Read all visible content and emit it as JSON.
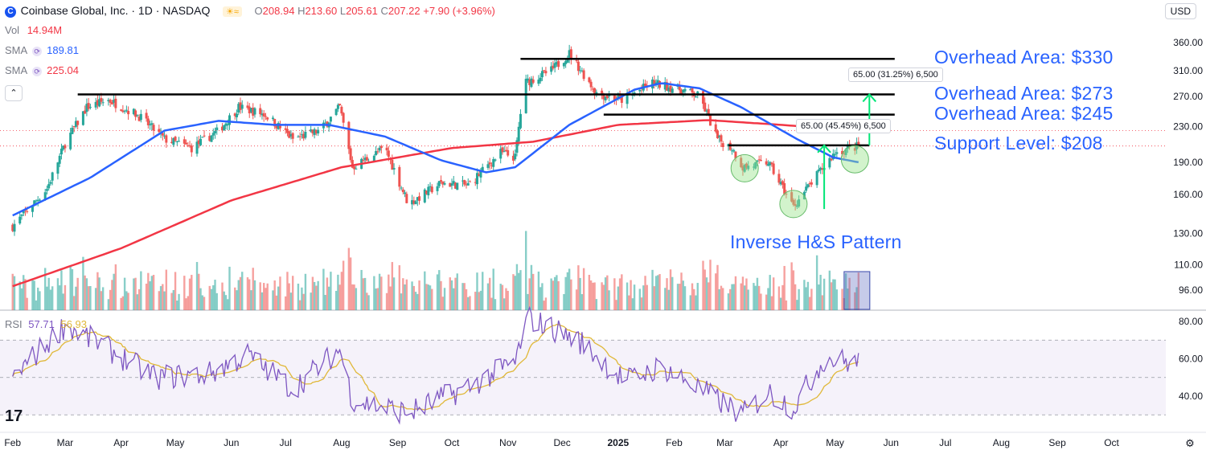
{
  "header": {
    "symbol_title": "Coinbase Global, Inc. · 1D · NASDAQ",
    "open_label": "O",
    "open": "208.94",
    "high_label": "H",
    "high": "213.60",
    "low_label": "L",
    "low": "205.61",
    "close_label": "C",
    "close": "207.22",
    "change": "+7.90 (+3.96%)",
    "currency": "USD"
  },
  "indicators": {
    "vol_label": "Vol",
    "vol_value": "14.94M",
    "sma1_label": "SMA",
    "sma1_value": "189.81",
    "sma2_label": "SMA",
    "sma2_value": "225.04",
    "rsi_label": "RSI",
    "rsi_value": "57.71",
    "rsi_ma_value": "56.93"
  },
  "annotations": {
    "overhead_330": "Overhead Area: $330",
    "overhead_273": "Overhead Area: $273",
    "overhead_245": "Overhead Area: $245",
    "support_208": "Support Level: $208",
    "pattern": "Inverse H&S Pattern",
    "measure_1": "65.00 (31.25%) 6,500",
    "measure_2": "65.00 (45.45%) 6,500"
  },
  "colors": {
    "up": "#26a69a",
    "down": "#ef5350",
    "sma50": "#2962ff",
    "sma200": "#f23645",
    "rsi": "#7e57c2",
    "rsi_ma": "#e0b838",
    "annotation": "#2962ff",
    "arrow": "#00e676"
  },
  "chart_data": {
    "type": "candlestick",
    "x_labels": [
      "Feb",
      "Mar",
      "Apr",
      "May",
      "Jun",
      "Jul",
      "Aug",
      "Sep",
      "Oct",
      "Nov",
      "Dec",
      "2025",
      "Feb",
      "Mar",
      "Apr",
      "May",
      "Jun",
      "Jul",
      "Aug",
      "Sep",
      "Oct"
    ],
    "y_ticks": [
      "360.00",
      "310.00",
      "270.00",
      "230.00",
      "190.00",
      "160.00",
      "130.00",
      "110.00",
      "96.00"
    ],
    "rsi_ticks": [
      "80.00",
      "60.00",
      "40.00"
    ],
    "horizontal_levels": [
      {
        "name": "overhead_330",
        "value": 330
      },
      {
        "name": "overhead_273",
        "value": 273
      },
      {
        "name": "overhead_245",
        "value": 245
      },
      {
        "name": "support_208",
        "value": 208
      }
    ],
    "price_anchors": [
      {
        "date": "2024-02-01",
        "close": 135
      },
      {
        "date": "2024-02-20",
        "close": 165
      },
      {
        "date": "2024-03-01",
        "close": 210
      },
      {
        "date": "2024-03-13",
        "close": 255
      },
      {
        "date": "2024-03-25",
        "close": 265
      },
      {
        "date": "2024-04-10",
        "close": 245
      },
      {
        "date": "2024-04-25",
        "close": 215
      },
      {
        "date": "2024-05-10",
        "close": 205
      },
      {
        "date": "2024-05-25",
        "close": 225
      },
      {
        "date": "2024-06-05",
        "close": 255
      },
      {
        "date": "2024-06-20",
        "close": 245
      },
      {
        "date": "2024-07-05",
        "close": 215
      },
      {
        "date": "2024-07-20",
        "close": 225
      },
      {
        "date": "2024-07-31",
        "close": 255
      },
      {
        "date": "2024-08-07",
        "close": 185
      },
      {
        "date": "2024-08-25",
        "close": 205
      },
      {
        "date": "2024-09-07",
        "close": 152
      },
      {
        "date": "2024-09-25",
        "close": 170
      },
      {
        "date": "2024-10-10",
        "close": 168
      },
      {
        "date": "2024-10-28",
        "close": 200
      },
      {
        "date": "2024-11-05",
        "close": 195
      },
      {
        "date": "2024-11-10",
        "close": 290
      },
      {
        "date": "2024-11-25",
        "close": 310
      },
      {
        "date": "2024-12-05",
        "close": 340
      },
      {
        "date": "2024-12-20",
        "close": 275
      },
      {
        "date": "2025-01-03",
        "close": 265
      },
      {
        "date": "2025-01-20",
        "close": 290
      },
      {
        "date": "2025-02-05",
        "close": 280
      },
      {
        "date": "2025-02-15",
        "close": 270
      },
      {
        "date": "2025-02-25",
        "close": 215
      },
      {
        "date": "2025-03-05",
        "close": 205
      },
      {
        "date": "2025-03-11",
        "close": 185
      },
      {
        "date": "2025-03-25",
        "close": 190
      },
      {
        "date": "2025-04-08",
        "close": 150
      },
      {
        "date": "2025-04-20",
        "close": 175
      },
      {
        "date": "2025-05-01",
        "close": 200
      },
      {
        "date": "2025-05-14",
        "close": 207
      }
    ],
    "sma50_anchors": [
      {
        "date": "2024-02-01",
        "value": 143
      },
      {
        "date": "2024-03-15",
        "value": 175
      },
      {
        "date": "2024-04-25",
        "value": 225
      },
      {
        "date": "2024-05-25",
        "value": 237
      },
      {
        "date": "2024-06-25",
        "value": 232
      },
      {
        "date": "2024-07-25",
        "value": 232
      },
      {
        "date": "2024-08-25",
        "value": 218
      },
      {
        "date": "2024-09-25",
        "value": 192
      },
      {
        "date": "2024-10-20",
        "value": 180
      },
      {
        "date": "2024-11-05",
        "value": 185
      },
      {
        "date": "2024-12-05",
        "value": 232
      },
      {
        "date": "2025-01-10",
        "value": 280
      },
      {
        "date": "2025-01-25",
        "value": 290
      },
      {
        "date": "2025-02-15",
        "value": 282
      },
      {
        "date": "2025-03-10",
        "value": 255
      },
      {
        "date": "2025-04-10",
        "value": 215
      },
      {
        "date": "2025-04-30",
        "value": 195
      },
      {
        "date": "2025-05-14",
        "value": 190
      }
    ],
    "sma200_anchors": [
      {
        "date": "2024-02-01",
        "value": 98
      },
      {
        "date": "2024-04-01",
        "value": 120
      },
      {
        "date": "2024-06-01",
        "value": 155
      },
      {
        "date": "2024-08-01",
        "value": 185
      },
      {
        "date": "2024-10-01",
        "value": 205
      },
      {
        "date": "2024-11-15",
        "value": 212
      },
      {
        "date": "2025-01-01",
        "value": 232
      },
      {
        "date": "2025-02-20",
        "value": 238
      },
      {
        "date": "2025-04-01",
        "value": 232
      },
      {
        "date": "2025-05-14",
        "value": 225
      }
    ],
    "rsi_anchors": [
      {
        "date": "2024-02-01",
        "value": 50
      },
      {
        "date": "2024-03-01",
        "value": 78
      },
      {
        "date": "2024-03-20",
        "value": 68
      },
      {
        "date": "2024-04-20",
        "value": 50
      },
      {
        "date": "2024-05-20",
        "value": 52
      },
      {
        "date": "2024-06-10",
        "value": 62
      },
      {
        "date": "2024-07-05",
        "value": 44
      },
      {
        "date": "2024-07-31",
        "value": 65
      },
      {
        "date": "2024-08-07",
        "value": 38
      },
      {
        "date": "2024-09-07",
        "value": 31
      },
      {
        "date": "2024-10-10",
        "value": 45
      },
      {
        "date": "2024-11-05",
        "value": 58
      },
      {
        "date": "2024-11-12",
        "value": 82
      },
      {
        "date": "2024-12-10",
        "value": 70
      },
      {
        "date": "2025-01-05",
        "value": 48
      },
      {
        "date": "2025-01-25",
        "value": 56
      },
      {
        "date": "2025-02-25",
        "value": 38
      },
      {
        "date": "2025-03-11",
        "value": 30
      },
      {
        "date": "2025-03-25",
        "value": 42
      },
      {
        "date": "2025-04-08",
        "value": 34
      },
      {
        "date": "2025-04-25",
        "value": 60
      },
      {
        "date": "2025-05-14",
        "value": 57.71
      }
    ]
  }
}
